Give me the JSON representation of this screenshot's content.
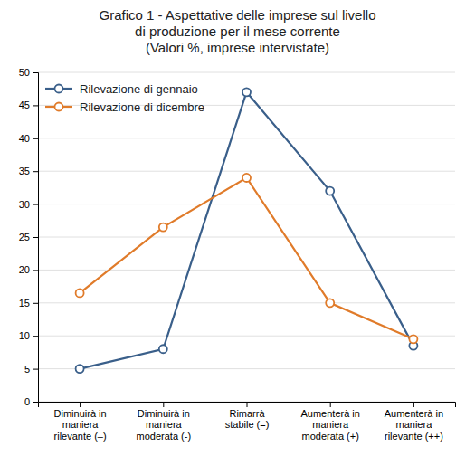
{
  "chart_data": {
    "type": "line",
    "title": "Grafico 1 - Aspettative delle imprese sul livello\ndi produzione per il mese corrente\n(Valori %, imprese intervistate)",
    "categories": [
      "Diminuirà in\nmaniera\nrilevante (–)",
      "Diminuirà in\nmaniera\nmoderata (-)",
      "Rimarrà\nstabile (=)",
      "Aumenterà in\nmaniera\nmoderata (+)",
      "Aumenterà in\nmaniera\nrilevante (++)"
    ],
    "series": [
      {
        "name": "Rilevazione di gennaio",
        "color": "#3a5f8a",
        "marker": "circle",
        "values": [
          5,
          8,
          47,
          32,
          8.5
        ]
      },
      {
        "name": "Rilevazione di dicembre",
        "color": "#e07b2a",
        "marker": "circle",
        "values": [
          16.5,
          26.5,
          34,
          15,
          9.5
        ]
      }
    ],
    "ylim": [
      0,
      50
    ],
    "yticks": [
      0,
      5,
      10,
      15,
      20,
      25,
      30,
      35,
      40,
      45,
      50
    ],
    "grid": true,
    "legend": "upper left"
  }
}
